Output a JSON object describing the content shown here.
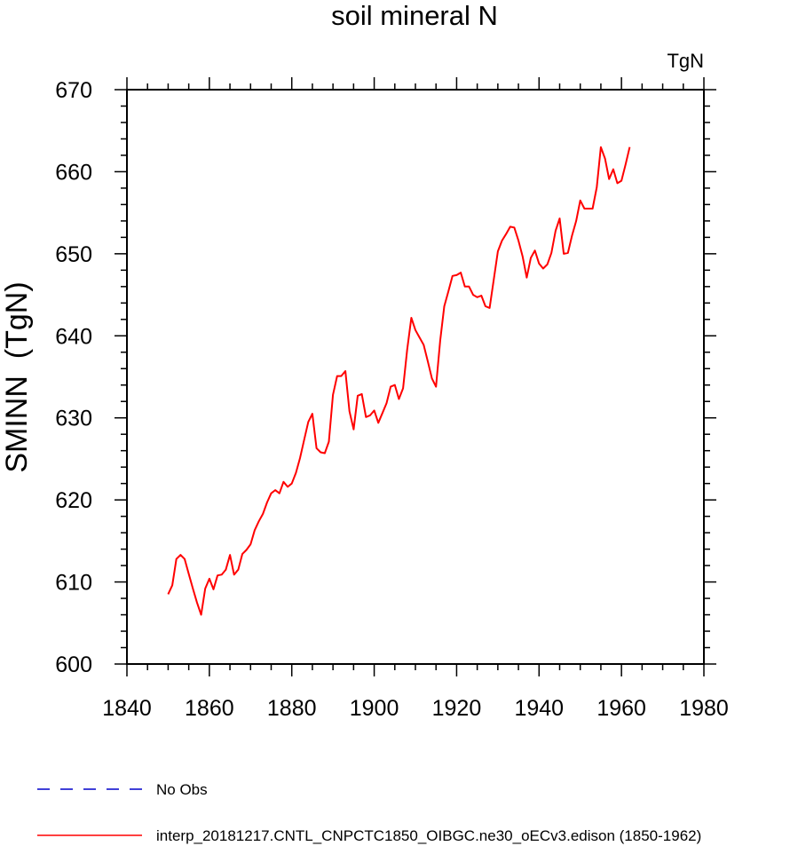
{
  "chart_data": {
    "type": "line",
    "title": "soil mineral N",
    "units_label": "TgN",
    "xlabel": "",
    "ylabel": "SMINN  (TgN)",
    "xlim": [
      1840,
      1980
    ],
    "ylim": [
      600,
      670
    ],
    "xticks": [
      1840,
      1860,
      1880,
      1900,
      1920,
      1940,
      1960,
      1980
    ],
    "yticks": [
      600,
      610,
      620,
      630,
      640,
      650,
      660,
      670
    ],
    "series": [
      {
        "name": "interp_20181217.CNTL_CNPCTC1850_OIBGC.ne30_oECv3.edison (1850-1962)",
        "color": "#ff0000",
        "style": "solid",
        "x": [
          1850,
          1851,
          1852,
          1853,
          1854,
          1855,
          1856,
          1857,
          1858,
          1859,
          1860,
          1861,
          1862,
          1863,
          1864,
          1865,
          1866,
          1867,
          1868,
          1869,
          1870,
          1871,
          1872,
          1873,
          1874,
          1875,
          1876,
          1877,
          1878,
          1879,
          1880,
          1881,
          1882,
          1883,
          1884,
          1885,
          1886,
          1887,
          1888,
          1889,
          1890,
          1891,
          1892,
          1893,
          1894,
          1895,
          1896,
          1897,
          1898,
          1899,
          1900,
          1901,
          1902,
          1903,
          1904,
          1905,
          1906,
          1907,
          1908,
          1909,
          1910,
          1911,
          1912,
          1913,
          1914,
          1915,
          1916,
          1917,
          1918,
          1919,
          1920,
          1921,
          1922,
          1923,
          1924,
          1925,
          1926,
          1927,
          1928,
          1929,
          1930,
          1931,
          1932,
          1933,
          1934,
          1935,
          1936,
          1937,
          1938,
          1939,
          1940,
          1941,
          1942,
          1943,
          1944,
          1945,
          1946,
          1947,
          1948,
          1949,
          1950,
          1951,
          1952,
          1953,
          1954,
          1955,
          1956,
          1957,
          1958,
          1959,
          1960,
          1961,
          1962
        ],
        "y": [
          608.5,
          609.6,
          612.8,
          613.3,
          612.8,
          611.0,
          609.2,
          607.5,
          606.0,
          609.2,
          610.4,
          609.1,
          610.8,
          610.9,
          611.5,
          613.3,
          610.9,
          611.5,
          613.4,
          613.9,
          614.6,
          616.3,
          617.4,
          618.3,
          619.7,
          620.8,
          621.2,
          620.8,
          622.2,
          621.6,
          622.0,
          623.3,
          625.1,
          627.3,
          629.5,
          630.5,
          626.3,
          625.8,
          625.7,
          627.1,
          632.8,
          635.1,
          635.1,
          635.7,
          630.8,
          628.6,
          632.7,
          632.9,
          630.1,
          630.3,
          630.9,
          629.4,
          630.6,
          631.8,
          633.8,
          634.0,
          632.3,
          633.6,
          638.3,
          642.2,
          640.7,
          639.8,
          638.9,
          636.9,
          634.8,
          633.8,
          639.4,
          643.6,
          645.4,
          647.3,
          647.4,
          647.7,
          646.0,
          646.0,
          645.0,
          644.7,
          644.9,
          643.6,
          643.4,
          646.8,
          650.3,
          651.6,
          652.4,
          653.3,
          653.2,
          651.6,
          649.7,
          647.1,
          649.5,
          650.4,
          648.8,
          648.2,
          648.7,
          650.1,
          652.8,
          654.3,
          650.0,
          650.1,
          652.2,
          654.0,
          656.5,
          655.5,
          655.5,
          655.5,
          658.1,
          663.0,
          661.6,
          659.1,
          660.3,
          658.6,
          658.9,
          660.9,
          663.0
        ]
      }
    ],
    "legend": [
      {
        "label": "No Obs",
        "color": "#0000cc",
        "style": "dashed"
      },
      {
        "label": "interp_20181217.CNTL_CNPCTC1850_OIBGC.ne30_oECv3.edison (1850-1962)",
        "color": "#ff0000",
        "style": "solid"
      }
    ]
  }
}
